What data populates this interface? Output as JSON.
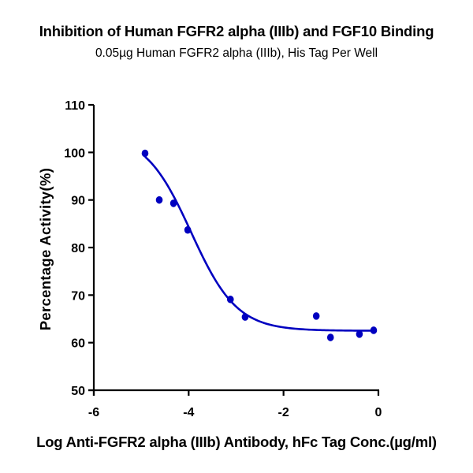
{
  "chart_data": {
    "type": "scatter",
    "title": "Inhibition of Human FGFR2 alpha (IIIb) and FGF10 Binding",
    "subtitle": "0.05µg Human FGFR2 alpha (IIIb), His Tag Per Well",
    "xlabel": "Log Anti-FGFR2 alpha (IIIb) Antibody, hFc Tag Conc.(µg/ml)",
    "ylabel": "Percentage Activity(%)",
    "xlim": [
      -6,
      0
    ],
    "ylim": [
      50,
      110
    ],
    "xticks": [
      -6,
      -4,
      -2,
      0
    ],
    "yticks": [
      50,
      60,
      70,
      80,
      90,
      100,
      110
    ],
    "grid": false,
    "legend": null,
    "series": [
      {
        "name": "Data points",
        "color": "#0000c0",
        "x": [
          -4.92,
          -4.62,
          -4.32,
          -4.02,
          -3.12,
          -2.81,
          -1.31,
          -1.01,
          -0.4,
          -0.1
        ],
        "y": [
          99.8,
          90.0,
          89.3,
          83.7,
          69.1,
          65.4,
          65.6,
          61.1,
          61.8,
          62.6
        ]
      }
    ],
    "fit_curve": {
      "model": "4PL",
      "color": "#0000c0",
      "bottom": 62.5,
      "top": 104,
      "logIC50": -3.95,
      "hill": 0.9,
      "x_range": [
        -4.92,
        -0.1
      ]
    }
  }
}
